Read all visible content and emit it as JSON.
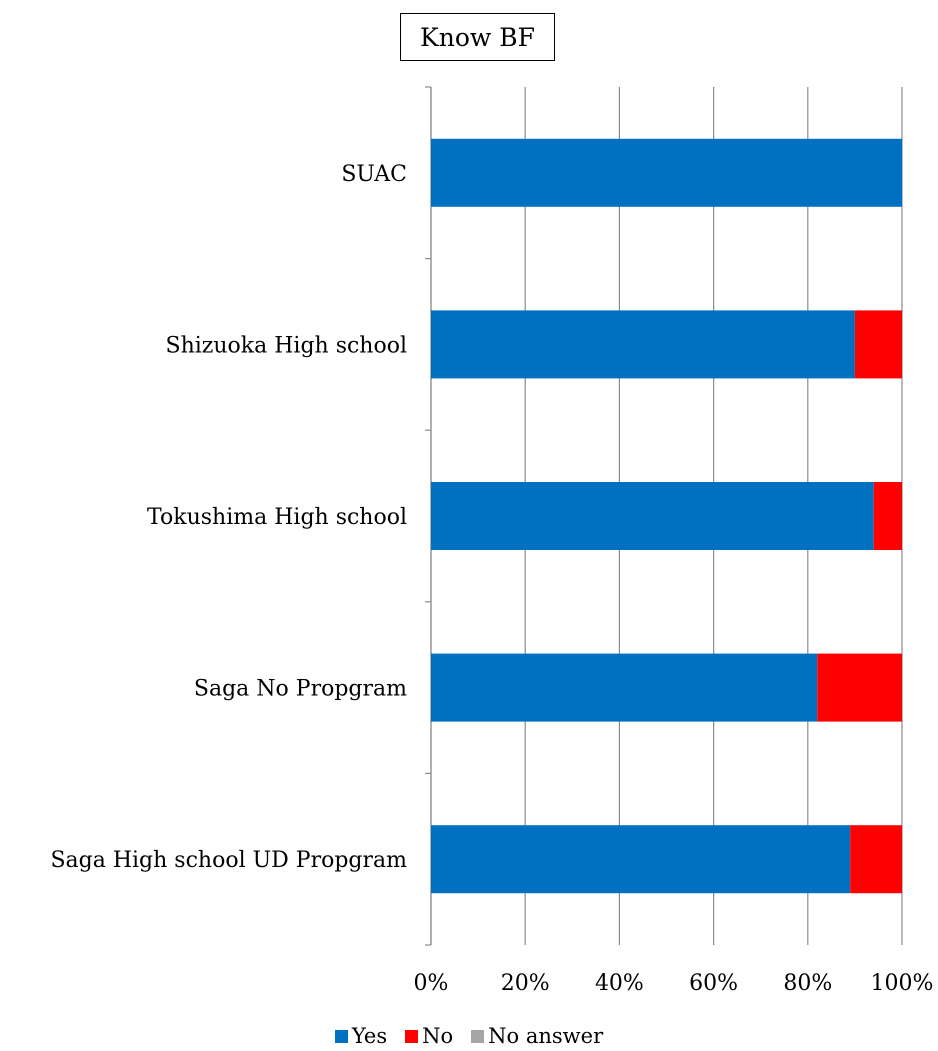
{
  "chart_data": {
    "type": "bar",
    "orientation": "horizontal",
    "stacked": true,
    "title": "Know BF",
    "categories": [
      "SUAC",
      "Shizuoka High school",
      "Tokushima High school",
      "Saga No Propgram",
      "Saga High school UD Propgram"
    ],
    "series": [
      {
        "name": "Yes",
        "color": "#0070c0",
        "values": [
          100,
          90,
          94,
          82,
          89
        ]
      },
      {
        "name": "No",
        "color": "#ff0000",
        "values": [
          0,
          10,
          6,
          18,
          11
        ]
      },
      {
        "name": "No answer",
        "color": "#a5a5a5",
        "values": [
          0,
          0,
          0,
          0,
          0
        ]
      }
    ],
    "xlim": [
      0,
      100
    ],
    "xticks": [
      "0%",
      "20%",
      "40%",
      "60%",
      "80%",
      "100%"
    ],
    "grid": true,
    "legend_position": "bottom"
  }
}
